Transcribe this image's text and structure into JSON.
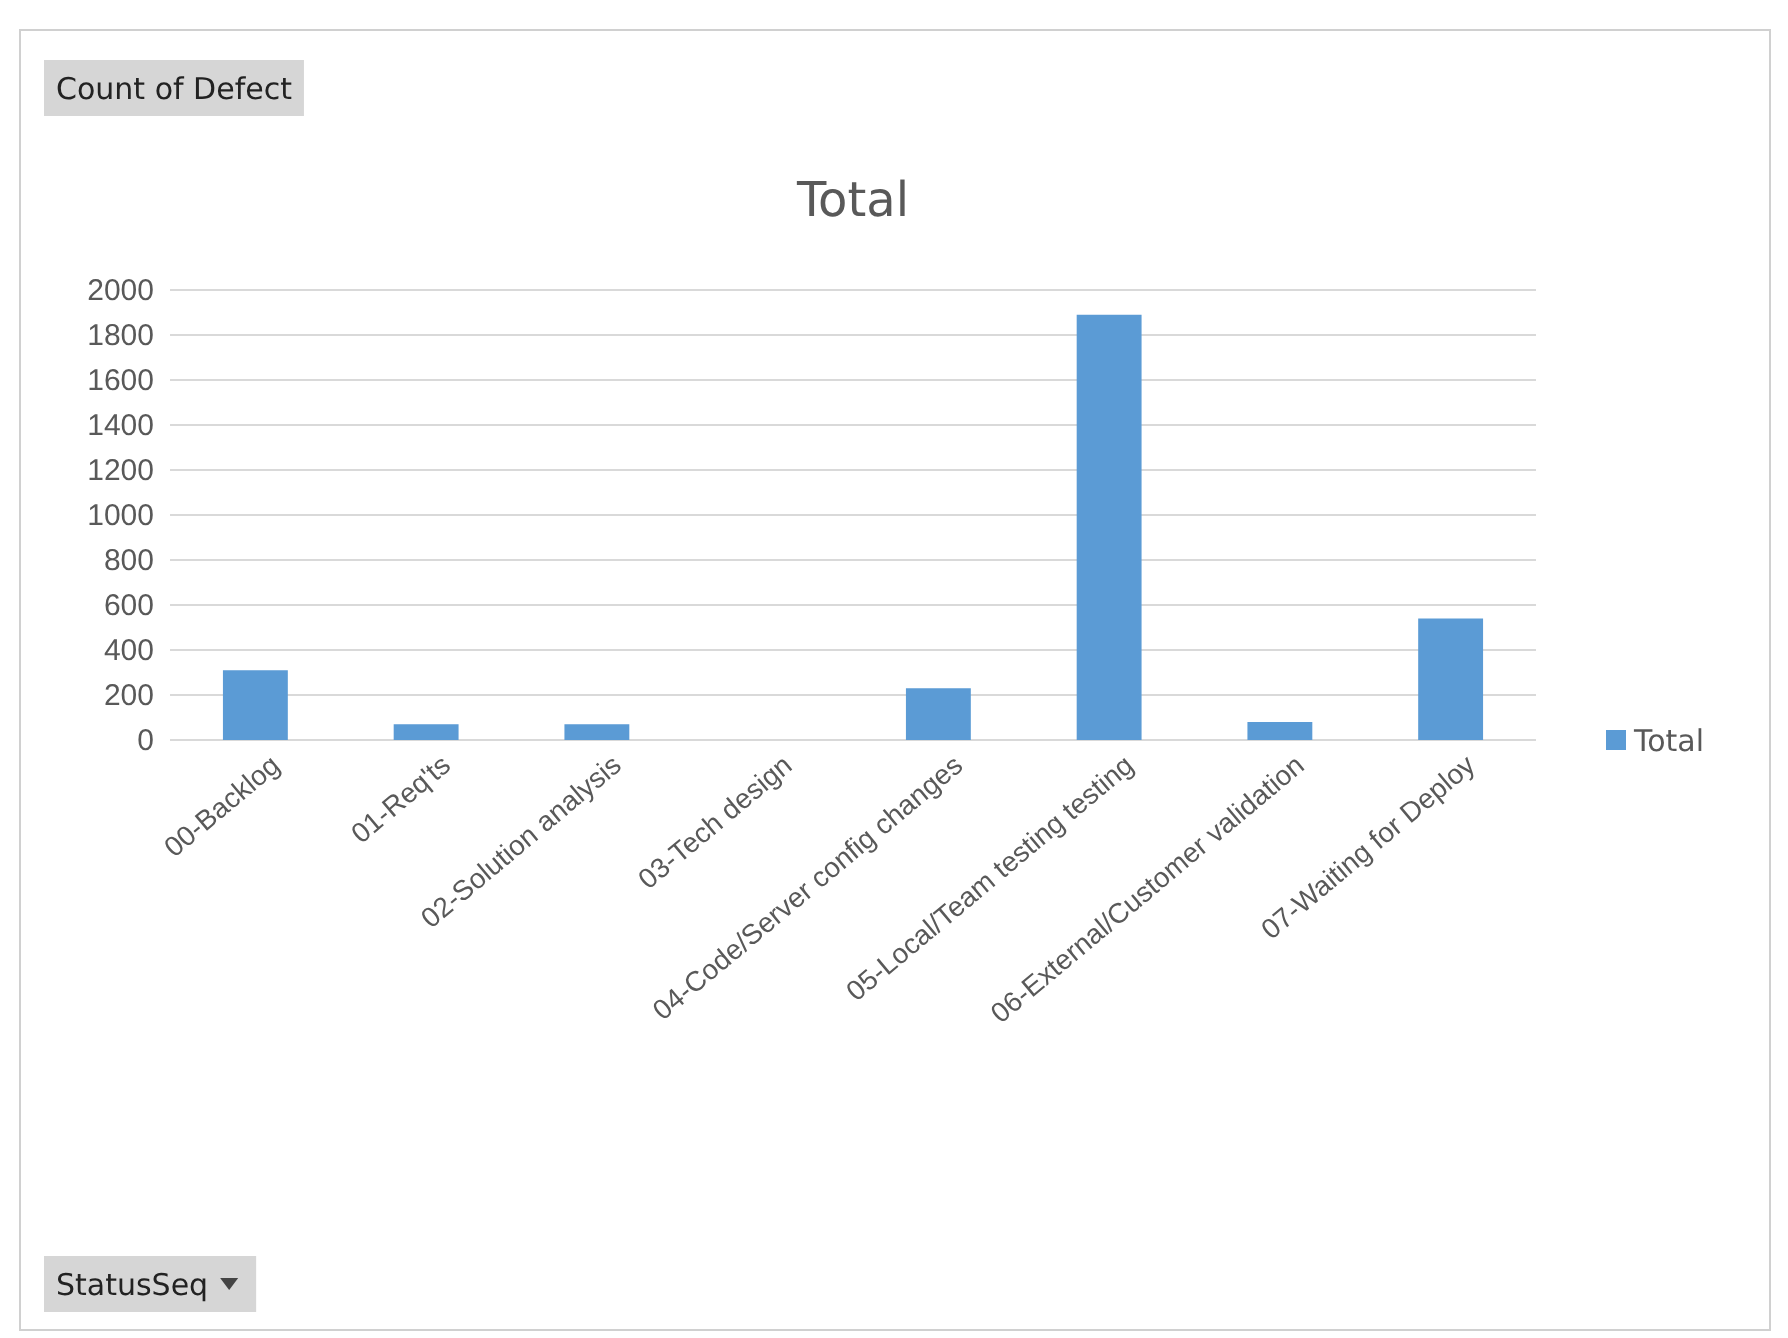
{
  "chart_data": {
    "type": "bar",
    "title": "Total",
    "categories": [
      "00-Backlog",
      "01-Req'ts",
      "02-Solution analysis",
      "03-Tech design",
      "04-Code/Server config changes",
      "05-Local/Team testing testing",
      "06-External/Customer validation",
      "07-Waiting for Deploy"
    ],
    "series": [
      {
        "name": "Total",
        "color": "#5b9bd5",
        "values": [
          310,
          70,
          70,
          0,
          230,
          1890,
          80,
          540
        ]
      }
    ],
    "ylim": [
      0,
      2000
    ],
    "yticks": [
      0,
      200,
      400,
      600,
      800,
      1000,
      1200,
      1400,
      1600,
      1800,
      2000
    ],
    "grid": "y",
    "legend": "right",
    "annotations": [
      "Count of Defect",
      "StatusSeq"
    ]
  }
}
